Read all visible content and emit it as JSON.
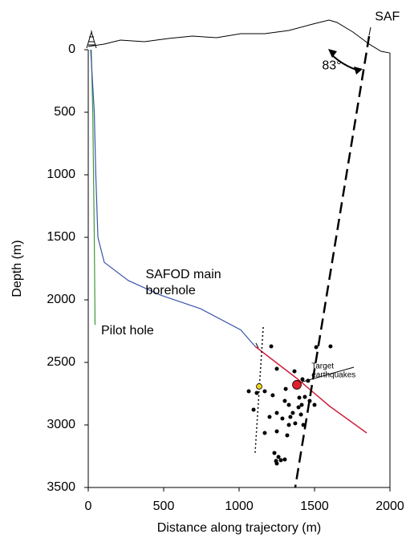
{
  "chart_data": {
    "type": "line",
    "x_label": "Distance along trajectory (m)",
    "y_label": "Depth (m)",
    "xlim": [
      0,
      2000
    ],
    "ylim": [
      3500,
      0
    ],
    "xticks": [
      0,
      500,
      1000,
      1500,
      2000
    ],
    "yticks": [
      0,
      500,
      1000,
      1500,
      2000,
      2500,
      3000,
      3500
    ],
    "series": [
      {
        "type": "line",
        "color": "#000000",
        "style": "solid",
        "width": 1,
        "x": [
          0,
          106,
          213,
          372,
          532,
          691,
          851,
          1011,
          1170,
          1330,
          1489,
          1596,
          1649,
          1755,
          1862,
          1941,
          2000
        ],
        "values": [
          -26,
          -45,
          -77,
          -64,
          -90,
          -109,
          -96,
          -128,
          -128,
          -154,
          -205,
          -237,
          -218,
          -141,
          -45,
          13,
          26
        ]
      },
      {
        "type": "line",
        "color": "#3a9a3a",
        "style": "solid",
        "width": 1.2,
        "x": [
          20,
          30,
          40,
          45
        ],
        "values": [
          0,
          500,
          1500,
          2200
        ]
      },
      {
        "type": "line",
        "color": "#3a55a8",
        "style": "solid",
        "width": 1.2,
        "x": [
          16,
          40,
          50,
          64,
          106,
          266,
          479,
          745,
          1011,
          1106
        ],
        "values": [
          0,
          500,
          1000,
          1500,
          1700,
          1846,
          1962,
          2071,
          2240,
          2372
        ]
      },
      {
        "type": "line",
        "color": "#d0203a",
        "style": "solid",
        "width": 1.5,
        "x": [
          1106,
          1383,
          1600,
          1846
        ],
        "values": [
          2372,
          2628,
          2850,
          3064
        ]
      },
      {
        "type": "line",
        "color": "#000000",
        "style": "dashed",
        "width": 2.5,
        "x": [
          1862,
          1372
        ],
        "values": [
          -109,
          3500
        ]
      },
      {
        "type": "line",
        "color": "#000000",
        "style": "dotted",
        "width": 1.5,
        "x": [
          1160,
          1106
        ],
        "values": [
          2218,
          3224
        ]
      },
      {
        "type": "scatter",
        "color": "#000000",
        "size": 2.5,
        "x": [
          1213,
          1511,
          1250,
          1367,
          1420,
          1457,
          1064,
          1117,
          1170,
          1223,
          1309,
          1436,
          1468,
          1500,
          1303,
          1330,
          1394,
          1096,
          1356,
          1410,
          1250,
          1287,
          1340,
          1426,
          1170,
          1250,
          1319,
          1234,
          1261,
          1245,
          1277,
          1250,
          1303,
          1606,
          1399,
          1415,
          1330,
          1202,
          1372
        ],
        "values": [
          2372,
          2378,
          2551,
          2571,
          2635,
          2647,
          2731,
          2744,
          2731,
          2763,
          2712,
          2776,
          2808,
          2840,
          2808,
          2840,
          2859,
          2878,
          2904,
          2917,
          2904,
          2949,
          2936,
          3000,
          3064,
          3051,
          3083,
          3224,
          3256,
          3288,
          3282,
          3308,
          3276,
          2372,
          2782,
          2840,
          3000,
          2936,
          2987
        ]
      },
      {
        "type": "scatter",
        "color": "#f2d21b",
        "size": 3.5,
        "x": [
          1133
        ],
        "values": [
          2692
        ]
      },
      {
        "type": "scatter",
        "color": "#e0202a",
        "size": 5.5,
        "x": [
          1383
        ],
        "values": [
          2679
        ]
      }
    ],
    "annotations": [
      {
        "text": [
          "SAF"
        ],
        "x": 1900,
        "y": -260
      },
      {
        "text": [
          "83°"
        ],
        "x": 1550,
        "y": 130
      },
      {
        "text": [
          "SAFOD main",
          "borehole"
        ],
        "x": 380,
        "y": 1800
      },
      {
        "text": [
          "Pilot hole"
        ],
        "x": 85,
        "y": 2250
      },
      {
        "text": [
          "Target",
          "earthquakes"
        ],
        "x": 1480,
        "y": 2530
      }
    ]
  }
}
